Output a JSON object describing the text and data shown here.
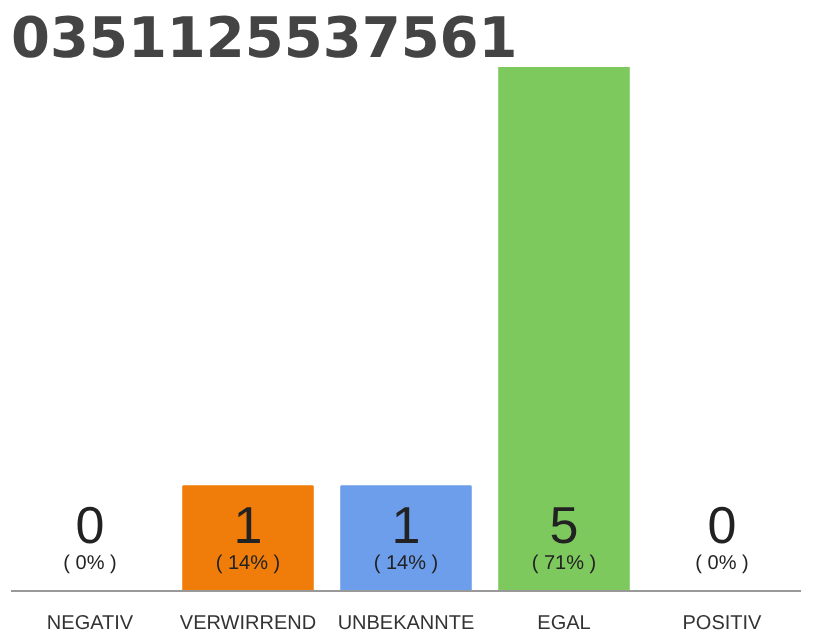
{
  "chart_data": {
    "type": "bar",
    "title": "0351125537561",
    "categories": [
      "NEGATIV",
      "VERWIRREND",
      "UNBEKANNTE",
      "EGAL",
      "POSITIV"
    ],
    "values": [
      0,
      1,
      1,
      5,
      0
    ],
    "colors": [
      "#f07d0a",
      "#f07d0a",
      "#6d9eeb",
      "#7dc95e",
      "#7dc95e"
    ],
    "value_labels": [
      "0\n( 0% )",
      "1\n( 14% )",
      "1\n( 14% )",
      "5\n( 71% )",
      "0\n( 0% )"
    ],
    "grid": false
  }
}
